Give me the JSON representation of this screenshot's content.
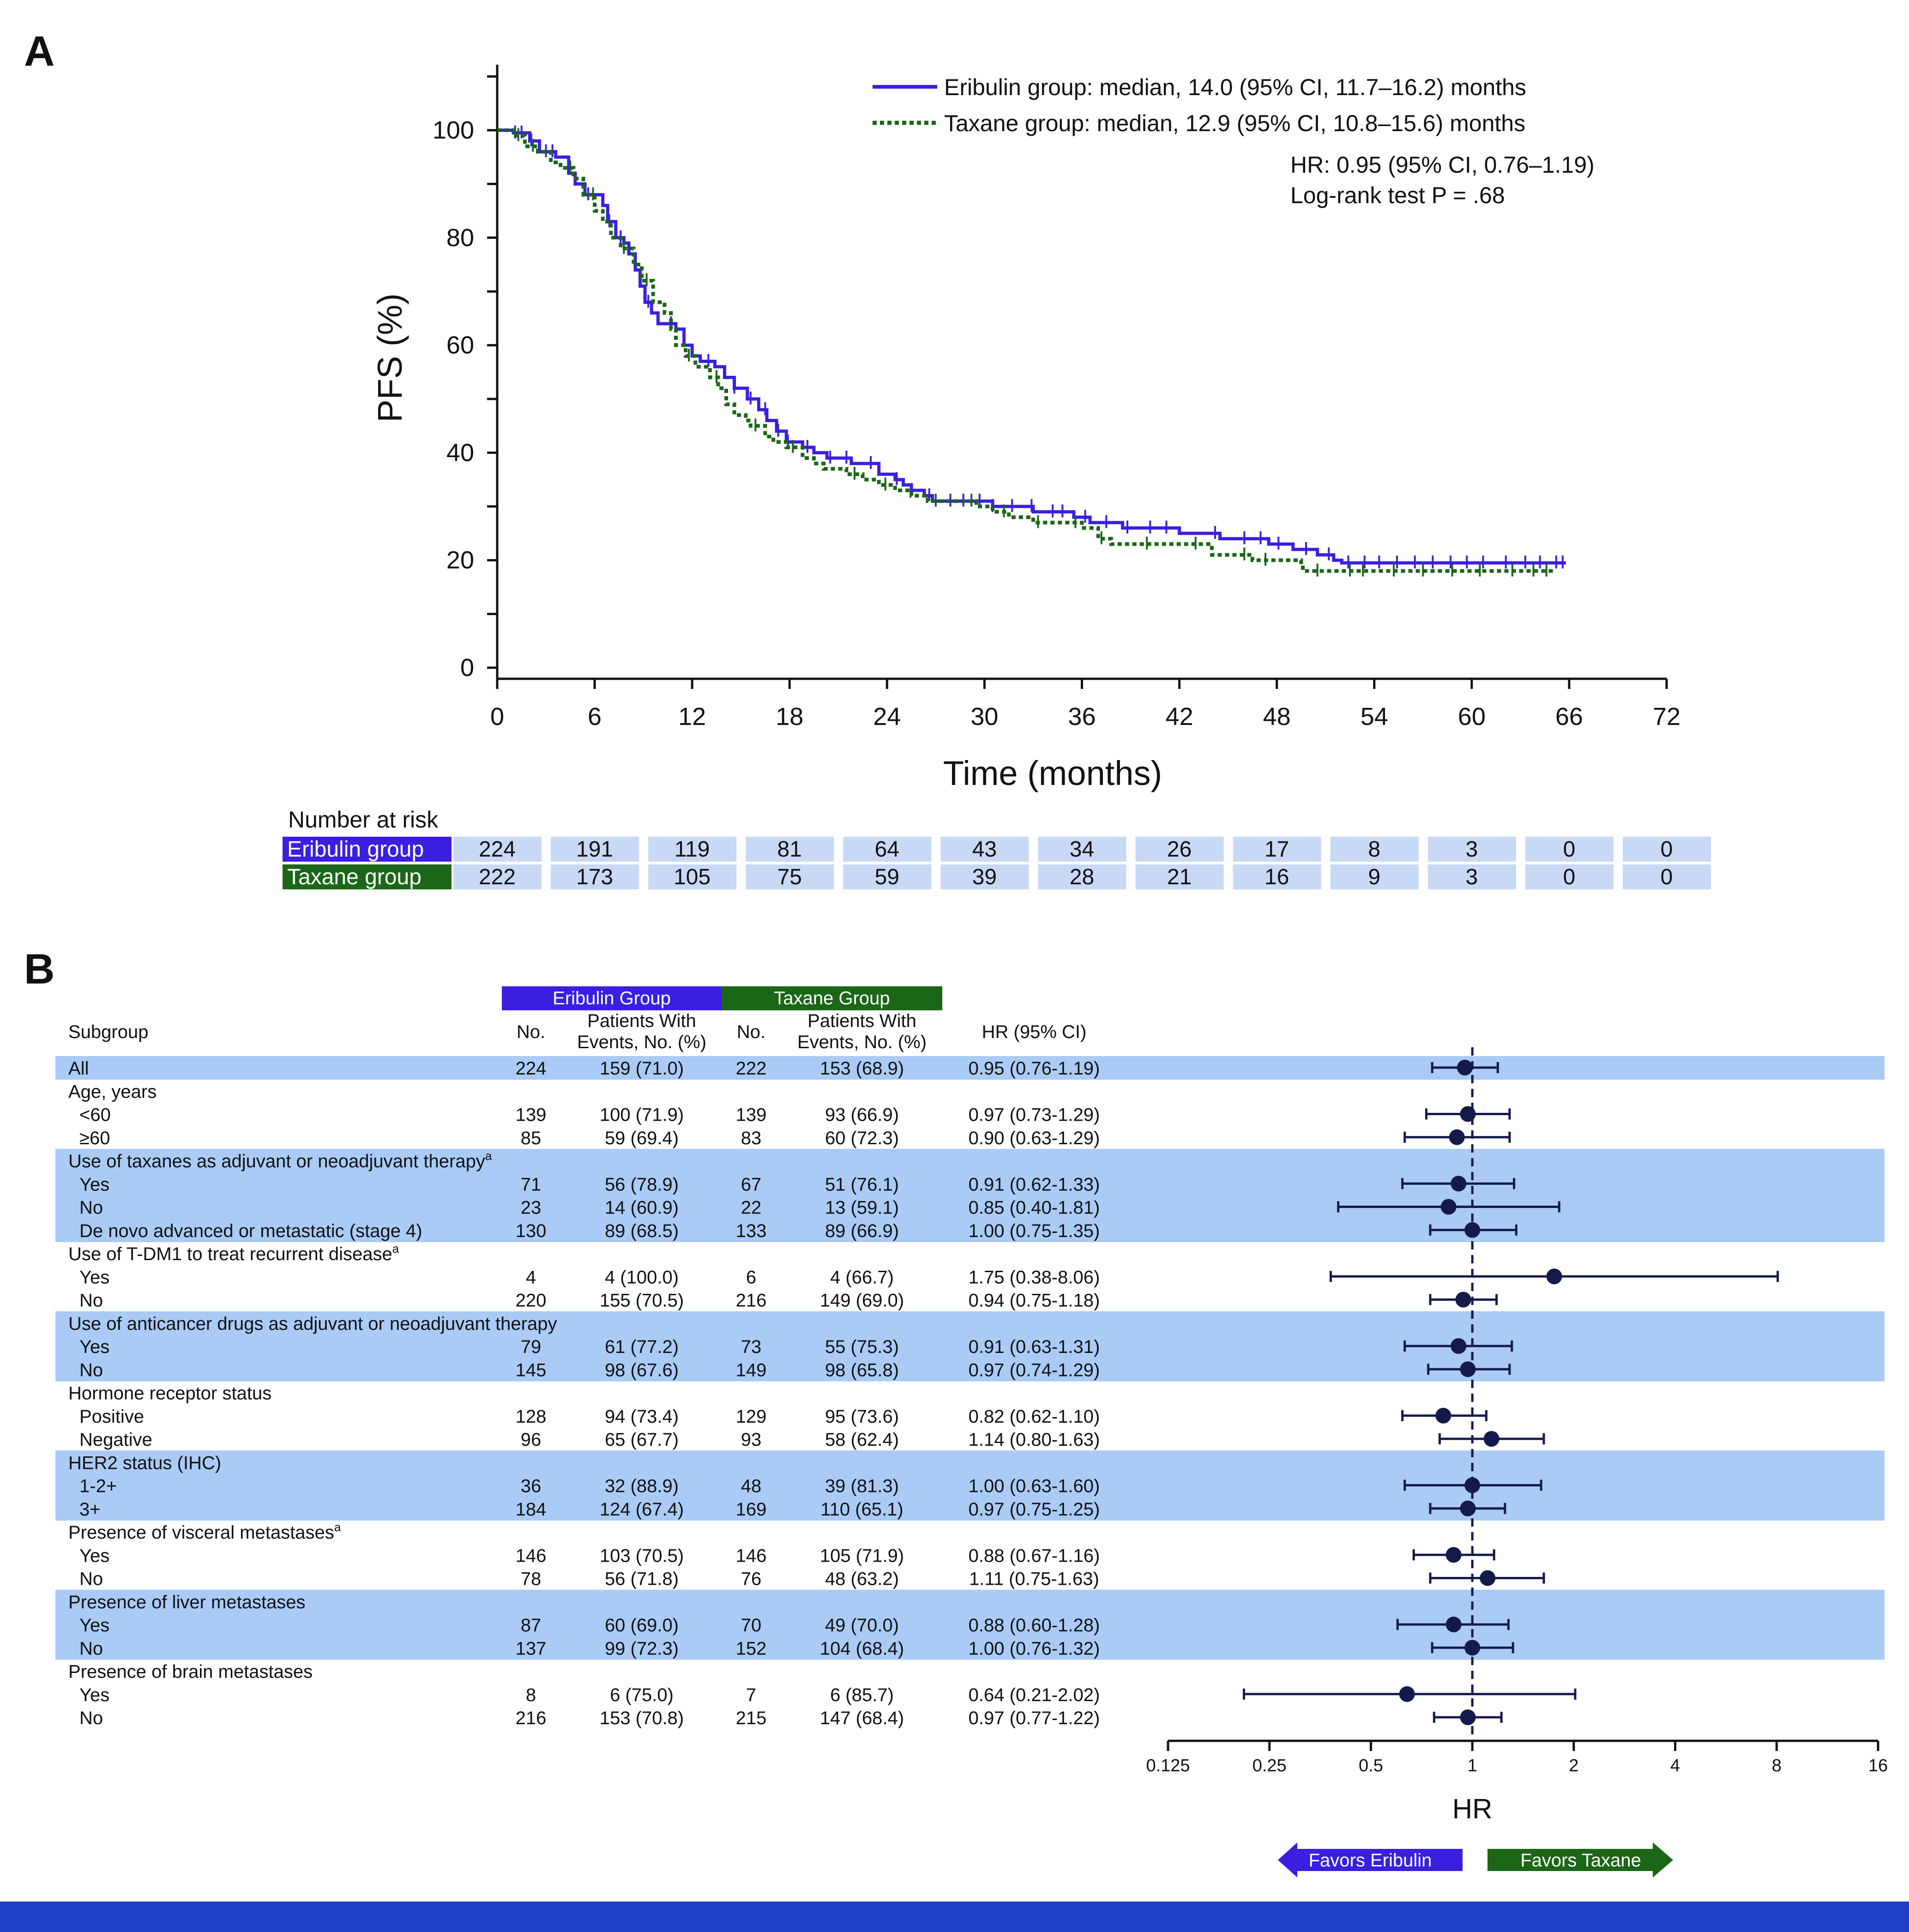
{
  "colors": {
    "eribulin": "#3a1fe0",
    "taxane": "#1c6618",
    "navy": "#141a4a",
    "row_highlight": "#a9cbf6",
    "risk_cell": "#c8d9f6",
    "bottom_bar": "#1f3fc8"
  },
  "chart_data": [
    {
      "panel": "A",
      "type": "line",
      "subtype": "kaplan-meier",
      "ylabel": "PFS (%)",
      "xlabel": "Time (months)",
      "xlim": [
        0,
        72
      ],
      "ylim": [
        0,
        110
      ],
      "x_ticks": [
        "0",
        "6",
        "12",
        "18",
        "24",
        "30",
        "36",
        "42",
        "48",
        "54",
        "60",
        "66",
        "72"
      ],
      "y_ticks": [
        "0",
        "20",
        "40",
        "60",
        "80",
        "100"
      ],
      "legend_placement": "top-right",
      "series": [
        {
          "name": "Eribulin group: median, 14.0 (95% CI, 11.7–16.2) months",
          "line_style": "solid",
          "points": [
            [
              0,
              100
            ],
            [
              1,
              99.5
            ],
            [
              2,
              98
            ],
            [
              2.6,
              96
            ],
            [
              3.6,
              95
            ],
            [
              4.4,
              92
            ],
            [
              4.8,
              90
            ],
            [
              5.4,
              88
            ],
            [
              6.5,
              86
            ],
            [
              6.8,
              83
            ],
            [
              7.3,
              80
            ],
            [
              7.8,
              79
            ],
            [
              8.1,
              77
            ],
            [
              8.5,
              74
            ],
            [
              8.8,
              71
            ],
            [
              9.1,
              68
            ],
            [
              9.5,
              66
            ],
            [
              9.9,
              64
            ],
            [
              11.0,
              63
            ],
            [
              11.5,
              60
            ],
            [
              12.0,
              58
            ],
            [
              12.5,
              57
            ],
            [
              13.4,
              56
            ],
            [
              14.0,
              54
            ],
            [
              14.6,
              52
            ],
            [
              15.4,
              50
            ],
            [
              16.1,
              48
            ],
            [
              16.6,
              46
            ],
            [
              17.2,
              44
            ],
            [
              17.8,
              42
            ],
            [
              18.8,
              41
            ],
            [
              19.5,
              40
            ],
            [
              20.3,
              39
            ],
            [
              21.8,
              38
            ],
            [
              23.5,
              36
            ],
            [
              24.5,
              35
            ],
            [
              25.0,
              34
            ],
            [
              25.5,
              33
            ],
            [
              26.3,
              32
            ],
            [
              26.8,
              31
            ],
            [
              29.5,
              31
            ],
            [
              30.5,
              30
            ],
            [
              33.0,
              29
            ],
            [
              35.5,
              28
            ],
            [
              36.5,
              27
            ],
            [
              37.8,
              27
            ],
            [
              38.5,
              26
            ],
            [
              42.0,
              25
            ],
            [
              44.5,
              24
            ],
            [
              47.5,
              23
            ],
            [
              49.0,
              22
            ],
            [
              50.5,
              21
            ],
            [
              51.5,
              20
            ],
            [
              52.0,
              19.5
            ],
            [
              65.8,
              19.5
            ]
          ],
          "censor_months": [
            1.1,
            1.5,
            2.1,
            3.0,
            3.4,
            5.6,
            6.9,
            7.6,
            9.3,
            10.7,
            13.0,
            14.6,
            15.6,
            16.5,
            17.3,
            17.9,
            19.1,
            20.5,
            21.5,
            23.0,
            24.6,
            25.5,
            26.6,
            27.9,
            28.7,
            29.7,
            30.5,
            31.7,
            32.9,
            34.2,
            34.8,
            36.2,
            37.5,
            38.8,
            40.2,
            41.2,
            44.2,
            46.0,
            47.0,
            48.1,
            49.8,
            51.2,
            52.4,
            53.4,
            54.3,
            55.4,
            56.5,
            57.6,
            58.7,
            59.7,
            60.7,
            62.1,
            63.3,
            64.2,
            65.2,
            65.6
          ]
        },
        {
          "name": "Taxane group: median, 12.9 (95% CI, 10.8–15.6) months",
          "line_style": "dotted",
          "points": [
            [
              0,
              100
            ],
            [
              1.0,
              99
            ],
            [
              1.7,
              97
            ],
            [
              2.5,
              96
            ],
            [
              3.3,
              94
            ],
            [
              3.9,
              93
            ],
            [
              4.7,
              91
            ],
            [
              5.3,
              88
            ],
            [
              6.0,
              85
            ],
            [
              6.5,
              83
            ],
            [
              7.0,
              80
            ],
            [
              7.6,
              78
            ],
            [
              8.4,
              75
            ],
            [
              8.9,
              72
            ],
            [
              9.6,
              68
            ],
            [
              10.3,
              66
            ],
            [
              10.7,
              63
            ],
            [
              11.0,
              60
            ],
            [
              11.6,
              58
            ],
            [
              12.2,
              56
            ],
            [
              13.1,
              54
            ],
            [
              13.6,
              52
            ],
            [
              14.1,
              49
            ],
            [
              14.6,
              47
            ],
            [
              15.3,
              46
            ],
            [
              15.6,
              45
            ],
            [
              16.5,
              43
            ],
            [
              17.0,
              42
            ],
            [
              17.8,
              41
            ],
            [
              18.8,
              39
            ],
            [
              19.5,
              38
            ],
            [
              20.1,
              37
            ],
            [
              21.5,
              36
            ],
            [
              22.5,
              35
            ],
            [
              23.5,
              34
            ],
            [
              24.5,
              33
            ],
            [
              25.5,
              32
            ],
            [
              26.5,
              31
            ],
            [
              29.5,
              30
            ],
            [
              30.5,
              29
            ],
            [
              31.5,
              28
            ],
            [
              33.0,
              27
            ],
            [
              36.0,
              26
            ],
            [
              37.0,
              24
            ],
            [
              37.8,
              23
            ],
            [
              44.0,
              21
            ],
            [
              46.5,
              20
            ],
            [
              49.5,
              19
            ],
            [
              49.6,
              18
            ],
            [
              65.0,
              18
            ]
          ],
          "censor_months": [
            1.3,
            2.2,
            4.5,
            5.9,
            7.8,
            9.2,
            11.8,
            13.5,
            15.9,
            18.2,
            22.0,
            23.9,
            27.0,
            29.2,
            31.2,
            33.3,
            35.6,
            37.2,
            40.0,
            43.0,
            46.0,
            47.3,
            50.5,
            52.5,
            53.3,
            55.2,
            57.0,
            58.8,
            60.5,
            62.5,
            63.8,
            64.6
          ]
        }
      ],
      "annotations": [
        "HR: 0.95 (95% CI, 0.76–1.19)",
        "Log-rank test P = .68"
      ],
      "number_at_risk": {
        "title": "Number at risk",
        "rows": [
          {
            "label": "Eribulin group",
            "values": [
              "224",
              "191",
              "119",
              "81",
              "64",
              "43",
              "34",
              "26",
              "17",
              "8",
              "3",
              "0",
              "0"
            ]
          },
          {
            "label": "Taxane group",
            "values": [
              "222",
              "173",
              "105",
              "75",
              "59",
              "39",
              "28",
              "21",
              "16",
              "9",
              "3",
              "0",
              "0"
            ]
          }
        ]
      }
    },
    {
      "panel": "B",
      "type": "forest",
      "xscale": "log2",
      "xlim": [
        0.125,
        16
      ],
      "x_ticks": [
        "0.125",
        "0.25",
        "0.5",
        "1",
        "2",
        "4",
        "8",
        "16"
      ],
      "xlabel": "HR",
      "reference_line": 1,
      "arrows": {
        "left": "Favors Eribulin",
        "right": "Favors Taxane"
      },
      "group_headers": {
        "eribulin": "Eribulin Group",
        "taxane": "Taxane Group"
      },
      "columns": {
        "subgroup": "Subgroup",
        "eribulin_no": "No.",
        "eribulin_events": [
          "Patients With",
          "Events, No. (%)"
        ],
        "taxane_no": "No.",
        "taxane_events": [
          "Patients With",
          "Events, No. (%)"
        ],
        "hr": "HR (95% CI)"
      },
      "rows": [
        {
          "label": "All",
          "shaded": true,
          "er_no": "224",
          "er_ev": "159 (71.0)",
          "tx_no": "222",
          "tx_ev": "153 (68.9)",
          "hr_text": "0.95 (0.76-1.19)",
          "hr": 0.95,
          "lo": 0.76,
          "hi": 1.19
        },
        {
          "label": "Age, years",
          "header": true
        },
        {
          "label": "<60",
          "indent": true,
          "er_no": "139",
          "er_ev": "100 (71.9)",
          "tx_no": "139",
          "tx_ev": "93 (66.9)",
          "hr_text": "0.97 (0.73-1.29)",
          "hr": 0.97,
          "lo": 0.73,
          "hi": 1.29
        },
        {
          "label": "≥60",
          "indent": true,
          "er_no": "85",
          "er_ev": "59 (69.4)",
          "tx_no": "83",
          "tx_ev": "60 (72.3)",
          "hr_text": "0.90 (0.63-1.29)",
          "hr": 0.9,
          "lo": 0.63,
          "hi": 1.29
        },
        {
          "label": "Use of taxanes as adjuvant or neoadjuvant therapy",
          "sup": "a",
          "header": true,
          "shaded": true
        },
        {
          "label": "Yes",
          "indent": true,
          "shaded": true,
          "er_no": "71",
          "er_ev": "56 (78.9)",
          "tx_no": "67",
          "tx_ev": "51 (76.1)",
          "hr_text": "0.91 (0.62-1.33)",
          "hr": 0.91,
          "lo": 0.62,
          "hi": 1.33
        },
        {
          "label": "No",
          "indent": true,
          "shaded": true,
          "er_no": "23",
          "er_ev": "14 (60.9)",
          "tx_no": "22",
          "tx_ev": "13 (59.1)",
          "hr_text": "0.85 (0.40-1.81)",
          "hr": 0.85,
          "lo": 0.4,
          "hi": 1.81
        },
        {
          "label": "De novo advanced or metastatic (stage 4)",
          "indent": true,
          "shaded": true,
          "er_no": "130",
          "er_ev": "89 (68.5)",
          "tx_no": "133",
          "tx_ev": "89 (66.9)",
          "hr_text": "1.00 (0.75-1.35)",
          "hr": 1.0,
          "lo": 0.75,
          "hi": 1.35
        },
        {
          "label": "Use of T-DM1 to treat recurrent disease",
          "sup": "a",
          "header": true
        },
        {
          "label": "Yes",
          "indent": true,
          "er_no": "4",
          "er_ev": "4 (100.0)",
          "tx_no": "6",
          "tx_ev": "4 (66.7)",
          "hr_text": "1.75 (0.38-8.06)",
          "hr": 1.75,
          "lo": 0.38,
          "hi": 8.06
        },
        {
          "label": "No",
          "indent": true,
          "er_no": "220",
          "er_ev": "155 (70.5)",
          "tx_no": "216",
          "tx_ev": "149 (69.0)",
          "hr_text": "0.94 (0.75-1.18)",
          "hr": 0.94,
          "lo": 0.75,
          "hi": 1.18
        },
        {
          "label": "Use of anticancer drugs as adjuvant or neoadjuvant therapy",
          "header": true,
          "shaded": true
        },
        {
          "label": "Yes",
          "indent": true,
          "shaded": true,
          "er_no": "79",
          "er_ev": "61 (77.2)",
          "tx_no": "73",
          "tx_ev": "55 (75.3)",
          "hr_text": "0.91 (0.63-1.31)",
          "hr": 0.91,
          "lo": 0.63,
          "hi": 1.31
        },
        {
          "label": "No",
          "indent": true,
          "shaded": true,
          "er_no": "145",
          "er_ev": "98 (67.6)",
          "tx_no": "149",
          "tx_ev": "98 (65.8)",
          "hr_text": "0.97 (0.74-1.29)",
          "hr": 0.97,
          "lo": 0.74,
          "hi": 1.29
        },
        {
          "label": "Hormone receptor status",
          "header": true
        },
        {
          "label": "Positive",
          "indent": true,
          "er_no": "128",
          "er_ev": "94 (73.4)",
          "tx_no": "129",
          "tx_ev": "95 (73.6)",
          "hr_text": "0.82 (0.62-1.10)",
          "hr": 0.82,
          "lo": 0.62,
          "hi": 1.1
        },
        {
          "label": "Negative",
          "indent": true,
          "er_no": "96",
          "er_ev": "65 (67.7)",
          "tx_no": "93",
          "tx_ev": "58 (62.4)",
          "hr_text": "1.14 (0.80-1.63)",
          "hr": 1.14,
          "lo": 0.8,
          "hi": 1.63
        },
        {
          "label": "HER2 status (IHC)",
          "header": true,
          "shaded": true
        },
        {
          "label": "1-2+",
          "indent": true,
          "shaded": true,
          "er_no": "36",
          "er_ev": "32 (88.9)",
          "tx_no": "48",
          "tx_ev": "39 (81.3)",
          "hr_text": "1.00 (0.63-1.60)",
          "hr": 1.0,
          "lo": 0.63,
          "hi": 1.6
        },
        {
          "label": "3+",
          "indent": true,
          "shaded": true,
          "er_no": "184",
          "er_ev": "124 (67.4)",
          "tx_no": "169",
          "tx_ev": "110 (65.1)",
          "hr_text": "0.97 (0.75-1.25)",
          "hr": 0.97,
          "lo": 0.75,
          "hi": 1.25
        },
        {
          "label": "Presence of visceral metastases",
          "sup": "a",
          "header": true
        },
        {
          "label": "Yes",
          "indent": true,
          "er_no": "146",
          "er_ev": "103 (70.5)",
          "tx_no": "146",
          "tx_ev": "105 (71.9)",
          "hr_text": "0.88 (0.67-1.16)",
          "hr": 0.88,
          "lo": 0.67,
          "hi": 1.16
        },
        {
          "label": "No",
          "indent": true,
          "er_no": "78",
          "er_ev": "56 (71.8)",
          "tx_no": "76",
          "tx_ev": "48 (63.2)",
          "hr_text": "1.11 (0.75-1.63)",
          "hr": 1.11,
          "lo": 0.75,
          "hi": 1.63
        },
        {
          "label": "Presence of liver metastases",
          "header": true,
          "shaded": true
        },
        {
          "label": "Yes",
          "indent": true,
          "shaded": true,
          "er_no": "87",
          "er_ev": "60 (69.0)",
          "tx_no": "70",
          "tx_ev": "49 (70.0)",
          "hr_text": "0.88 (0.60-1.28)",
          "hr": 0.88,
          "lo": 0.6,
          "hi": 1.28
        },
        {
          "label": "No",
          "indent": true,
          "shaded": true,
          "er_no": "137",
          "er_ev": "99 (72.3)",
          "tx_no": "152",
          "tx_ev": "104 (68.4)",
          "hr_text": "1.00 (0.76-1.32)",
          "hr": 1.0,
          "lo": 0.76,
          "hi": 1.32
        },
        {
          "label": "Presence of brain metastases",
          "header": true
        },
        {
          "label": "Yes",
          "indent": true,
          "er_no": "8",
          "er_ev": "6 (75.0)",
          "tx_no": "7",
          "tx_ev": "6 (85.7)",
          "hr_text": "0.64 (0.21-2.02)",
          "hr": 0.64,
          "lo": 0.21,
          "hi": 2.02
        },
        {
          "label": "No",
          "indent": true,
          "er_no": "216",
          "er_ev": "153 (70.8)",
          "tx_no": "215",
          "tx_ev": "147 (68.4)",
          "hr_text": "0.97 (0.77-1.22)",
          "hr": 0.97,
          "lo": 0.77,
          "hi": 1.22
        }
      ]
    }
  ],
  "panel_labels": [
    "A",
    "B"
  ]
}
